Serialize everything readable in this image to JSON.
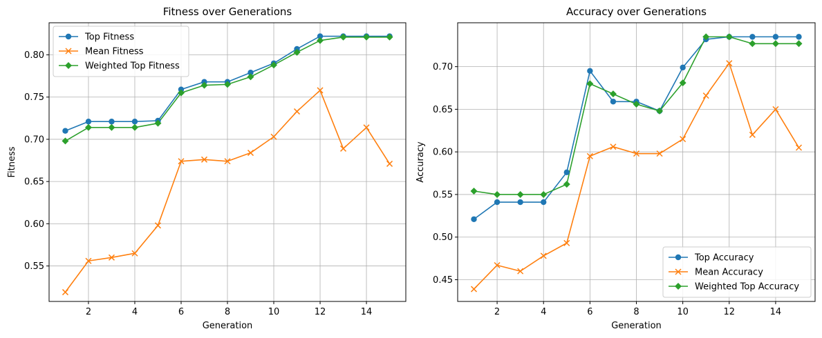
{
  "chart_data": [
    {
      "type": "line",
      "title": "Fitness over Generations",
      "xlabel": "Generation",
      "ylabel": "Fitness",
      "xlim": [
        0.3,
        15.7
      ],
      "ylim": [
        0.508,
        0.838
      ],
      "xticks": [
        2,
        4,
        6,
        8,
        10,
        12,
        14
      ],
      "yticks": [
        0.55,
        0.6,
        0.65,
        0.7,
        0.75,
        0.8
      ],
      "tick_decimals": 2,
      "grid": true,
      "legend_position": "top-left",
      "x": [
        1,
        2,
        3,
        4,
        5,
        6,
        7,
        8,
        9,
        10,
        11,
        12,
        13,
        14,
        15
      ],
      "series": [
        {
          "name": "Top Fitness",
          "color": "#1f77b4",
          "marker": "circle",
          "values": [
            0.71,
            0.721,
            0.721,
            0.721,
            0.722,
            0.759,
            0.768,
            0.768,
            0.779,
            0.79,
            0.807,
            0.822,
            0.822,
            0.822,
            0.822
          ]
        },
        {
          "name": "Mean Fitness",
          "color": "#ff7f0e",
          "marker": "x",
          "values": [
            0.519,
            0.556,
            0.56,
            0.565,
            0.598,
            0.674,
            0.676,
            0.674,
            0.684,
            0.703,
            0.733,
            0.758,
            0.689,
            0.714,
            0.671
          ]
        },
        {
          "name": "Weighted Top Fitness",
          "color": "#2ca02c",
          "marker": "diamond",
          "values": [
            0.698,
            0.714,
            0.714,
            0.714,
            0.719,
            0.755,
            0.764,
            0.765,
            0.774,
            0.788,
            0.803,
            0.817,
            0.821,
            0.821,
            0.821
          ]
        }
      ]
    },
    {
      "type": "line",
      "title": "Accuracy over Generations",
      "xlabel": "Generation",
      "ylabel": "Accuracy",
      "xlim": [
        0.3,
        15.7
      ],
      "ylim": [
        0.4245,
        0.7515
      ],
      "xticks": [
        2,
        4,
        6,
        8,
        10,
        12,
        14
      ],
      "yticks": [
        0.45,
        0.5,
        0.55,
        0.6,
        0.65,
        0.7
      ],
      "tick_decimals": 2,
      "grid": true,
      "legend_position": "bottom-right",
      "x": [
        1,
        2,
        3,
        4,
        5,
        6,
        7,
        8,
        9,
        10,
        11,
        12,
        13,
        14,
        15
      ],
      "series": [
        {
          "name": "Top Accuracy",
          "color": "#1f77b4",
          "marker": "circle",
          "values": [
            0.521,
            0.541,
            0.541,
            0.541,
            0.576,
            0.695,
            0.659,
            0.659,
            0.648,
            0.699,
            0.732,
            0.735,
            0.735,
            0.735,
            0.735
          ]
        },
        {
          "name": "Mean Accuracy",
          "color": "#ff7f0e",
          "marker": "x",
          "values": [
            0.439,
            0.467,
            0.46,
            0.478,
            0.493,
            0.595,
            0.606,
            0.598,
            0.598,
            0.615,
            0.666,
            0.704,
            0.62,
            0.65,
            0.605
          ]
        },
        {
          "name": "Weighted Top Accuracy",
          "color": "#2ca02c",
          "marker": "diamond",
          "values": [
            0.554,
            0.55,
            0.55,
            0.55,
            0.562,
            0.68,
            0.668,
            0.656,
            0.648,
            0.681,
            0.735,
            0.735,
            0.727,
            0.727,
            0.727
          ]
        }
      ]
    }
  ]
}
